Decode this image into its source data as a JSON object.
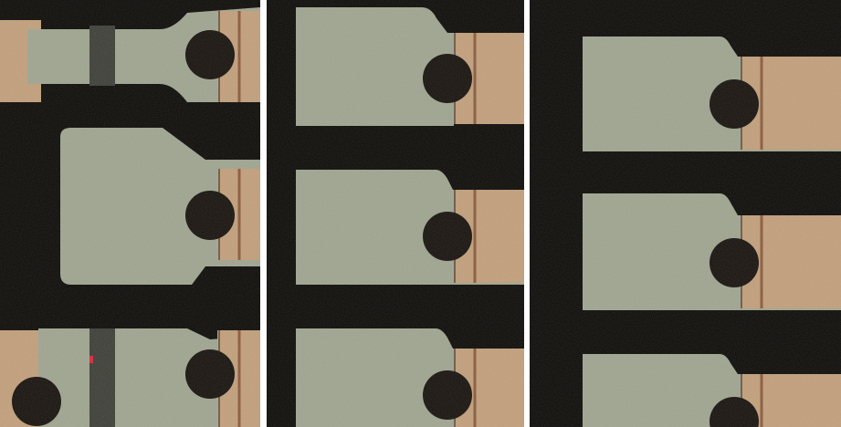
{
  "scene": {
    "description_kind": "microscope-image-triptych",
    "panel_count": 3
  },
  "colors": {
    "background_black": "#0b0a07",
    "metal_pad": "#9fa590",
    "metal_pad_edge": "#c9cdbb",
    "substrate_tan": "#c29f7a",
    "trace_line": "#8a5a3c",
    "via_hole": "#16110c",
    "separator": "#ffffff",
    "marker": "#e0243c"
  }
}
